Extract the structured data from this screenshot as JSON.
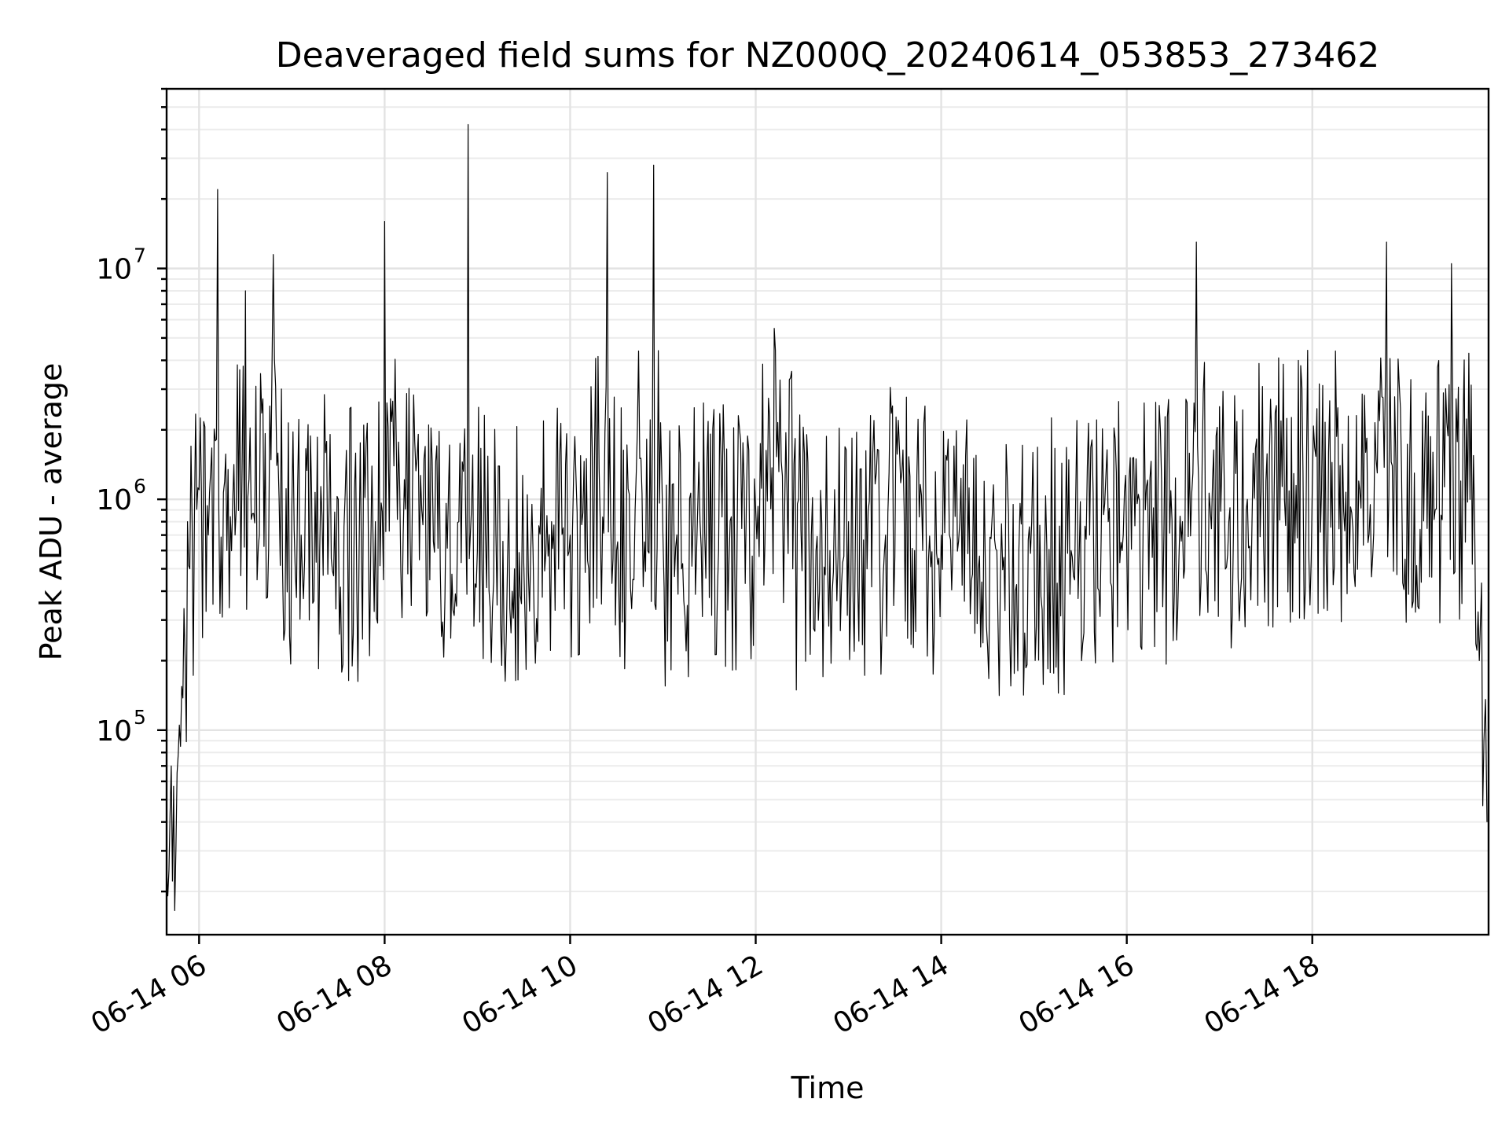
{
  "chart_data": {
    "type": "line",
    "title": "Deaveraged field sums for NZ000Q_20240614_053853_273462",
    "xlabel": "Time",
    "ylabel": "Peak ADU - average",
    "yscale": "log",
    "ylim": [
      13000,
      60000000
    ],
    "xlim": [
      "2024-06-14T05:39:00",
      "2024-06-14T19:54:00"
    ],
    "grid": true,
    "x_ticks": [
      {
        "label": "06-14 06",
        "t": "2024-06-14T06:00:00"
      },
      {
        "label": "06-14 08",
        "t": "2024-06-14T08:00:00"
      },
      {
        "label": "06-14 10",
        "t": "2024-06-14T10:00:00"
      },
      {
        "label": "06-14 12",
        "t": "2024-06-14T12:00:00"
      },
      {
        "label": "06-14 14",
        "t": "2024-06-14T14:00:00"
      },
      {
        "label": "06-14 16",
        "t": "2024-06-14T16:00:00"
      },
      {
        "label": "06-14 18",
        "t": "2024-06-14T18:00:00"
      }
    ],
    "y_ticks": [
      {
        "base": "10",
        "exp": "5",
        "value": 100000
      },
      {
        "base": "10",
        "exp": "6",
        "value": 1000000
      },
      {
        "base": "10",
        "exp": "7",
        "value": 10000000
      }
    ],
    "series": [
      {
        "color": "#000000",
        "x": [
          "2024-06-14T05:39:00",
          "2024-06-14T05:42:00",
          "2024-06-14T05:45:00",
          "2024-06-14T05:48:00",
          "2024-06-14T05:51:00",
          "2024-06-14T05:54:00",
          "2024-06-14T05:57:00",
          "2024-06-14T06:00:00",
          "2024-06-14T06:06:00",
          "2024-06-14T06:12:00",
          "2024-06-14T06:18:00",
          "2024-06-14T06:24:00",
          "2024-06-14T06:30:00",
          "2024-06-14T06:39:00",
          "2024-06-14T06:48:00",
          "2024-06-14T06:54:00",
          "2024-06-14T07:00:00",
          "2024-06-14T07:06:00",
          "2024-06-14T07:18:00",
          "2024-06-14T07:30:00",
          "2024-06-14T07:42:00",
          "2024-06-14T07:54:00",
          "2024-06-14T08:00:00",
          "2024-06-14T08:12:00",
          "2024-06-14T08:24:00",
          "2024-06-14T08:36:00",
          "2024-06-14T08:48:00",
          "2024-06-14T08:54:00",
          "2024-06-14T09:00:00",
          "2024-06-14T09:12:00",
          "2024-06-14T09:24:00",
          "2024-06-14T09:36:00",
          "2024-06-14T09:48:00",
          "2024-06-14T10:00:00",
          "2024-06-14T10:12:00",
          "2024-06-14T10:24:00",
          "2024-06-14T10:30:00",
          "2024-06-14T10:42:00",
          "2024-06-14T10:54:00",
          "2024-06-14T11:00:00",
          "2024-06-14T11:12:00",
          "2024-06-14T11:24:00",
          "2024-06-14T11:36:00",
          "2024-06-14T11:48:00",
          "2024-06-14T12:00:00",
          "2024-06-14T12:12:00",
          "2024-06-14T12:24:00",
          "2024-06-14T12:36:00",
          "2024-06-14T12:48:00",
          "2024-06-14T13:00:00",
          "2024-06-14T13:12:00",
          "2024-06-14T13:24:00",
          "2024-06-14T13:36:00",
          "2024-06-14T13:48:00",
          "2024-06-14T14:00:00",
          "2024-06-14T14:12:00",
          "2024-06-14T14:24:00",
          "2024-06-14T14:36:00",
          "2024-06-14T14:48:00",
          "2024-06-14T15:00:00",
          "2024-06-14T15:12:00",
          "2024-06-14T15:24:00",
          "2024-06-14T15:36:00",
          "2024-06-14T15:48:00",
          "2024-06-14T16:00:00",
          "2024-06-14T16:12:00",
          "2024-06-14T16:24:00",
          "2024-06-14T16:36:00",
          "2024-06-14T16:45:00",
          "2024-06-14T16:54:00",
          "2024-06-14T17:06:00",
          "2024-06-14T17:18:00",
          "2024-06-14T17:30:00",
          "2024-06-14T17:42:00",
          "2024-06-14T17:54:00",
          "2024-06-14T18:06:00",
          "2024-06-14T18:18:00",
          "2024-06-14T18:30:00",
          "2024-06-14T18:42:00",
          "2024-06-14T18:48:00",
          "2024-06-14T18:54:00",
          "2024-06-14T19:06:00",
          "2024-06-14T19:18:00",
          "2024-06-14T19:30:00",
          "2024-06-14T19:36:00",
          "2024-06-14T19:42:00",
          "2024-06-14T19:45:00",
          "2024-06-14T19:48:00",
          "2024-06-14T19:51:00",
          "2024-06-14T19:53:00"
        ],
        "y": [
          25000,
          70000,
          30000,
          85000,
          200000,
          500000,
          850000,
          1100000,
          700000,
          22000000,
          600000,
          900000,
          8000000,
          700000,
          11500000,
          500000,
          900000,
          700000,
          600000,
          1000000,
          400000,
          800000,
          16000000,
          700000,
          900000,
          500000,
          800000,
          42000000,
          600000,
          700000,
          500000,
          600000,
          800000,
          700000,
          500000,
          26000000,
          600000,
          900000,
          28000000,
          700000,
          500000,
          800000,
          600000,
          700000,
          900000,
          5500000,
          500000,
          700000,
          600000,
          800000,
          500000,
          700000,
          900000,
          600000,
          700000,
          800000,
          500000,
          600000,
          400000,
          700000,
          500000,
          600000,
          700000,
          800000,
          600000,
          900000,
          700000,
          800000,
          13000000,
          900000,
          800000,
          1000000,
          1200000,
          1000000,
          1300000,
          1100000,
          1400000,
          1200000,
          1300000,
          13000000,
          1500000,
          1300000,
          1600000,
          10500000,
          1200000,
          1000000,
          800000,
          200000,
          90000,
          40000
        ]
      }
    ]
  }
}
